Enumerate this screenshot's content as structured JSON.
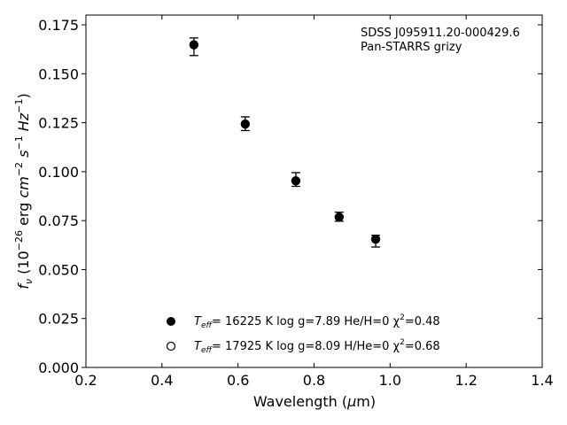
{
  "chart_data": {
    "type": "scatter",
    "annotation": {
      "line1": "SDSS J095911.20-000429.6",
      "line2": "Pan-STARRS grizy"
    },
    "xlabel": "Wavelength (μm)",
    "ylabel": "f_ν (10^-26 erg cm^-2 s^-1 Hz^-1)",
    "xlim": [
      0.2,
      1.4
    ],
    "ylim": [
      0.0,
      0.18
    ],
    "xticks": [
      "0.2",
      "0.4",
      "0.6",
      "0.8",
      "1.0",
      "1.2",
      "1.4"
    ],
    "yticks": [
      "0.000",
      "0.025",
      "0.050",
      "0.075",
      "0.100",
      "0.125",
      "0.150",
      "0.175"
    ],
    "observed": {
      "x": [
        0.484,
        0.619,
        0.752,
        0.866,
        0.962
      ],
      "y": [
        0.1638,
        0.1245,
        0.096,
        0.077,
        0.0645
      ],
      "yerr": [
        0.0045,
        0.0035,
        0.0035,
        0.0023,
        0.003
      ]
    },
    "series": [
      {
        "marker": "filled-circle",
        "x": [
          0.484,
          0.619,
          0.752,
          0.866,
          0.962
        ],
        "y": [
          0.1648,
          0.1243,
          0.0953,
          0.0768,
          0.0655
        ]
      },
      {
        "marker": "open-circle",
        "x": [
          0.484,
          0.619,
          0.752,
          0.866,
          0.962
        ],
        "y": [
          0.1648,
          0.1243,
          0.0953,
          0.0768,
          0.0655
        ]
      }
    ],
    "legend": [
      {
        "marker": "filled-circle",
        "teff_prefix": "T",
        "teff_sub": "eff",
        "text": "= 16225 K  log g=7.89  He/H=0  χ",
        "chi_sup": "2",
        "chi_value": "=0.48"
      },
      {
        "marker": "open-circle",
        "teff_prefix": "T",
        "teff_sub": "eff",
        "text": "= 17925 K  log g=8.09  H/He=0  χ",
        "chi_sup": "2",
        "chi_value": "=0.68"
      }
    ],
    "legend_position": "lower-center",
    "grid": false,
    "colors": {
      "marker": "#000000",
      "axes": "#000000",
      "background": "#ffffff"
    }
  }
}
